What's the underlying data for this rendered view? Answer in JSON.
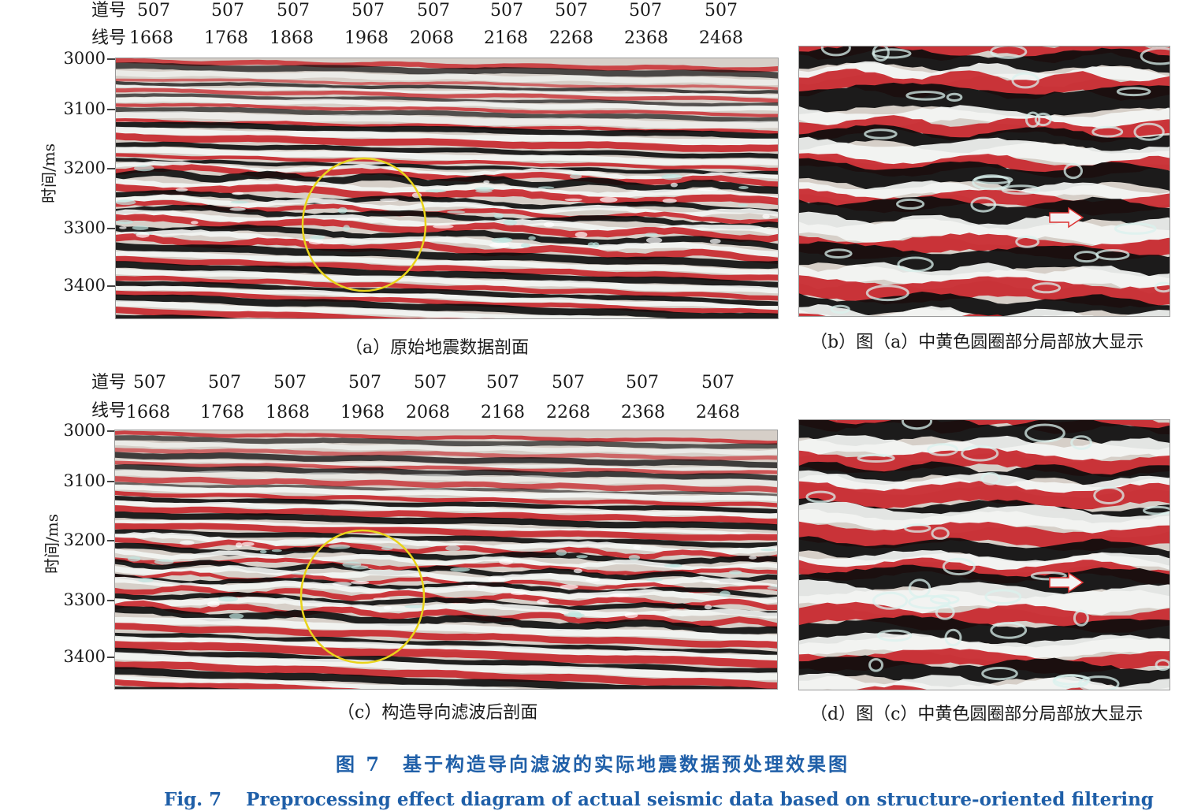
{
  "panel_a": {
    "trace_label": "道号",
    "line_label": "线号",
    "trace_values": [
      "507",
      "507",
      "507",
      "507",
      "507",
      "507",
      "507",
      "507",
      "507"
    ],
    "line_values": [
      "1668",
      "1768",
      "1868",
      "1968",
      "2068",
      "2168",
      "2268",
      "2368",
      "2468"
    ],
    "y_ticks": [
      "3000",
      "3100",
      "3200",
      "3300",
      "3400"
    ],
    "y_label": "时间/ms",
    "caption": "（a）原始地震数据剖面"
  },
  "panel_b": {
    "caption": "（b）图（a）中黄色圆圈部分局部放大显示"
  },
  "panel_c": {
    "trace_label": "道号",
    "line_label": "线号",
    "trace_values": [
      "507",
      "507",
      "507",
      "507",
      "507",
      "507",
      "507",
      "507",
      "507"
    ],
    "line_values": [
      "1668",
      "1768",
      "1868",
      "1968",
      "2068",
      "2168",
      "2268",
      "2368",
      "2468"
    ],
    "y_ticks": [
      "3000",
      "3100",
      "3200",
      "3300",
      "3400"
    ],
    "y_label": "时间/ms",
    "caption": "（c）构造导向滤波后剖面"
  },
  "panel_d": {
    "caption": "（d）图（c）中黄色圆圈部分局部放大显示"
  },
  "figure": {
    "title_zh": "图 7　基于构造导向滤波的实际地震数据预处理效果图",
    "title_en": "Fig. 7　 Preprocessing effect diagram of actual seismic data based on structure-oriented filtering"
  },
  "colors": {
    "red": "#c8262b",
    "black": "#0c0c0c",
    "white": "#f4f6f4",
    "circle": "#e9d41a",
    "caption_blue": "#1f5fa8"
  }
}
